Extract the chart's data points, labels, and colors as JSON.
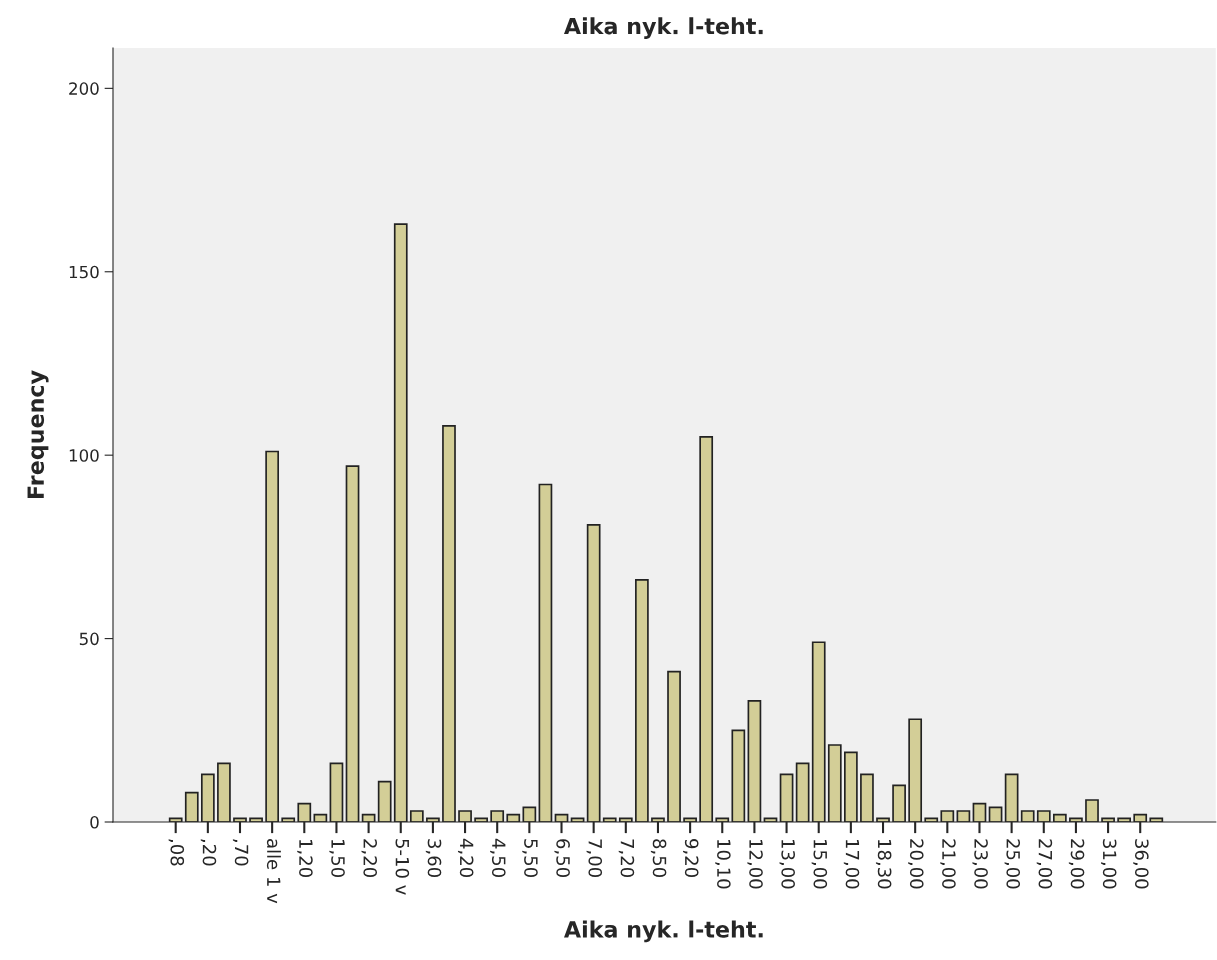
{
  "chart_data": {
    "type": "bar",
    "title": "Aika nyk. l-teht.",
    "xlabel": "Aika nyk. l-teht.",
    "ylabel": "Frequency",
    "categories": [
      ",08",
      null,
      ",20",
      null,
      ",70",
      null,
      "alle 1 v",
      null,
      "1,20",
      null,
      "1,50",
      null,
      "2,20",
      null,
      "5-10 v",
      null,
      "3,60",
      null,
      "4,20",
      null,
      "4,50",
      null,
      "5,50",
      null,
      "6,50",
      null,
      "7,00",
      null,
      "7,20",
      null,
      "8,50",
      null,
      "9,20",
      null,
      "10,10",
      null,
      "12,00",
      null,
      "13,00",
      null,
      "15,00",
      null,
      "17,00",
      null,
      "18,30",
      null,
      "20,00",
      null,
      "21,00",
      null,
      "23,00",
      null,
      "25,00",
      null,
      "27,00",
      null,
      "29,00",
      null,
      "31,00",
      null,
      "36,00",
      null
    ],
    "values": [
      1,
      8,
      13,
      16,
      1,
      1,
      101,
      1,
      5,
      2,
      16,
      97,
      2,
      11,
      163,
      3,
      1,
      108,
      3,
      1,
      3,
      2,
      4,
      92,
      2,
      1,
      81,
      1,
      1,
      66,
      1,
      41,
      1,
      105,
      1,
      25,
      33,
      1,
      13,
      16,
      49,
      21,
      19,
      13,
      1,
      10,
      28,
      1,
      3,
      3,
      5,
      4,
      13,
      3,
      3,
      2,
      1,
      6,
      1,
      1,
      2,
      1
    ],
    "color": "#d3ce97",
    "ylim": [
      0,
      211
    ],
    "yticks": [
      0,
      50,
      100,
      150,
      200
    ],
    "grid": false,
    "legend": false
  }
}
